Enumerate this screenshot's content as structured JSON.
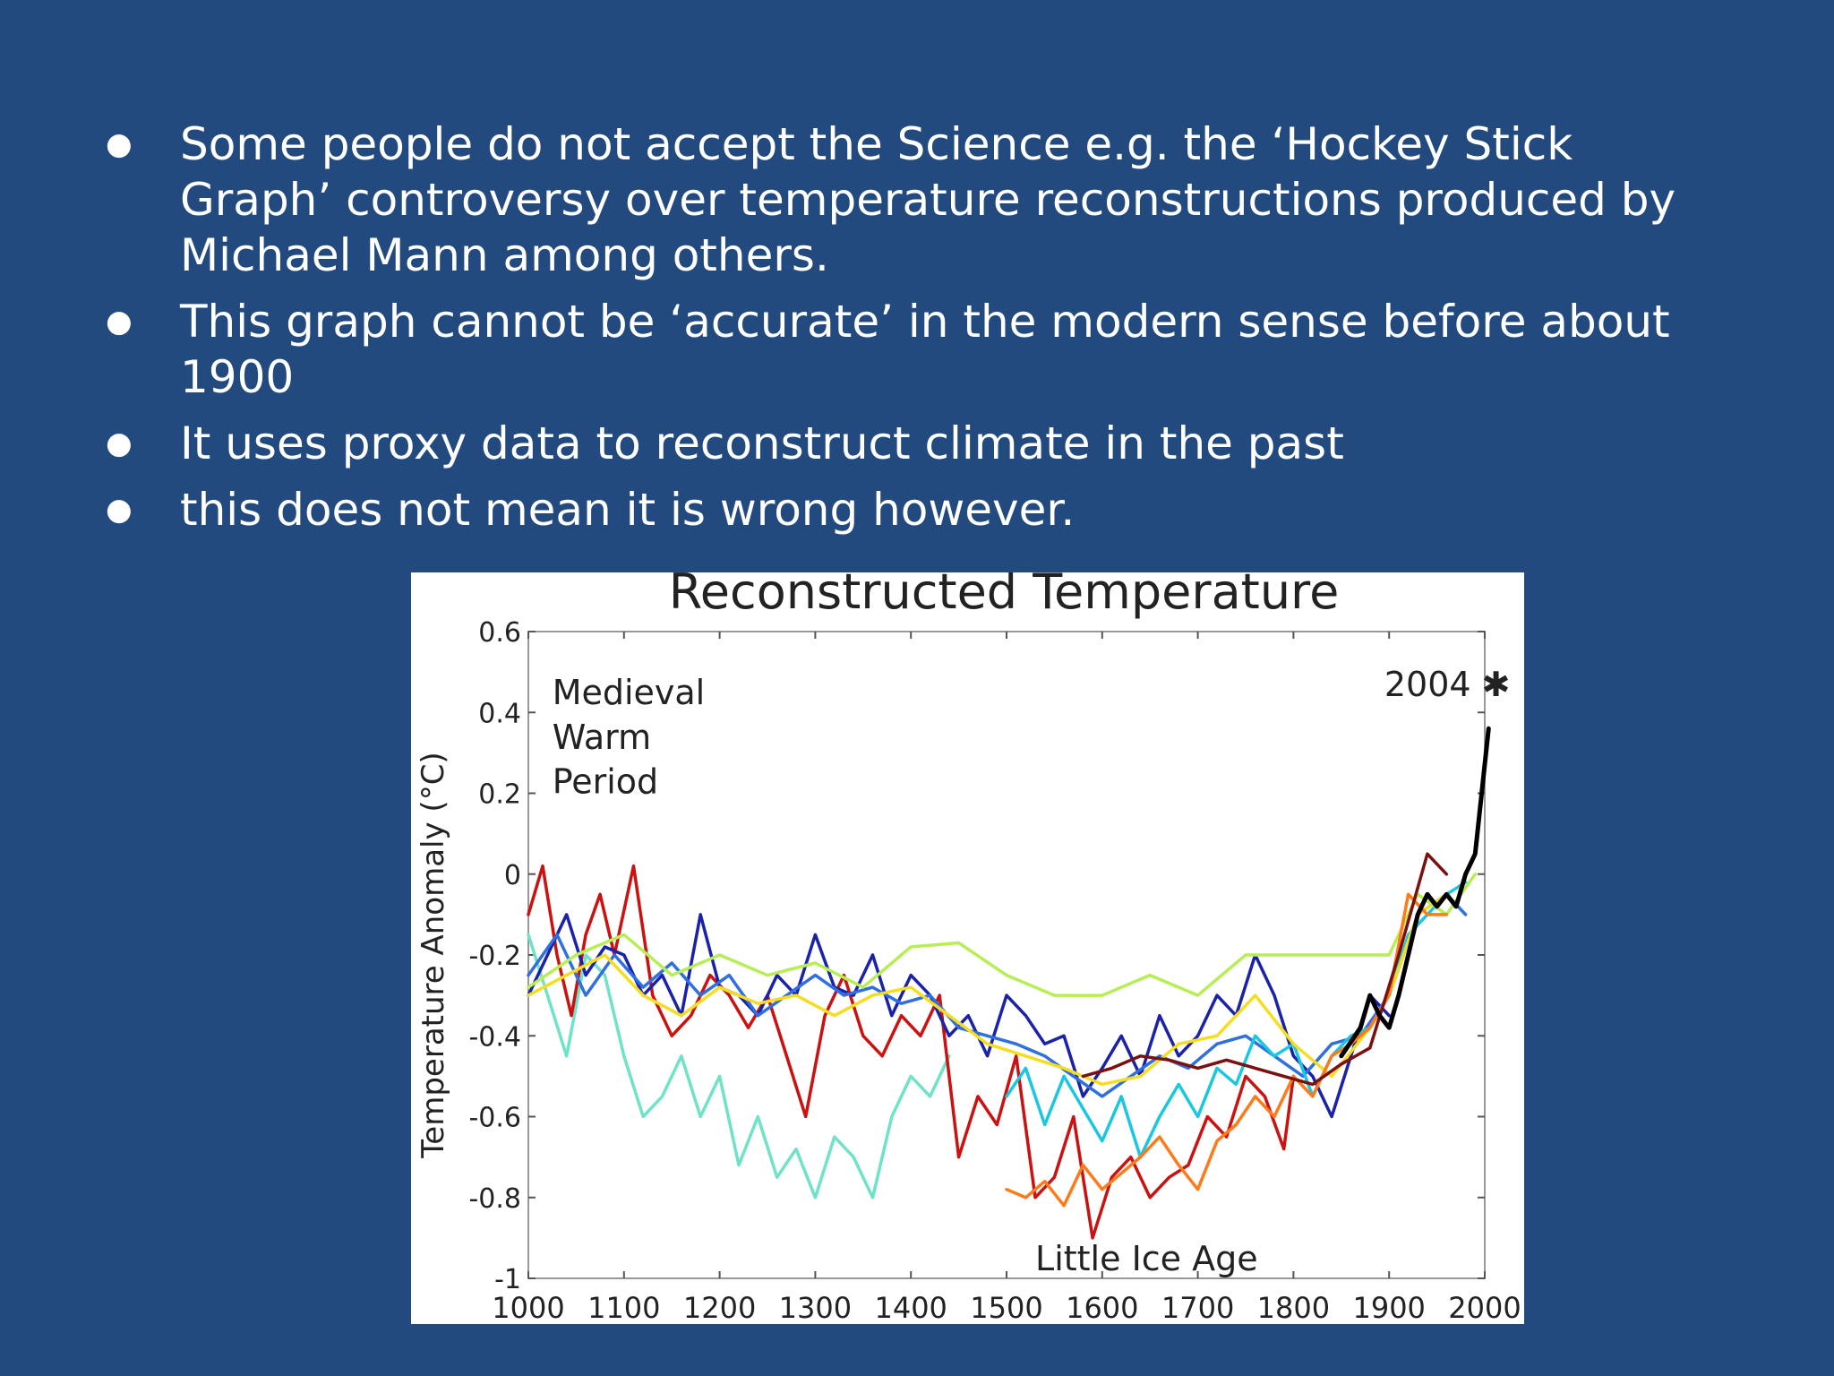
{
  "slide": {
    "bullets": [
      "Some people do not accept the Science e.g. the ‘Hockey Stick Graph’ controversy over temperature reconstructions produced by Michael Mann among others.",
      "This graph cannot be ‘accurate’ in the modern sense before about 1900",
      "It uses proxy data to reconstruct climate in the past",
      "this does not mean it is wrong however."
    ],
    "background": "#234a7e",
    "text_color": "#ffffff"
  },
  "chart_data": {
    "type": "line",
    "title": "Reconstructed Temperature",
    "xlabel": "",
    "ylabel": "Temperature Anomaly (°C)",
    "xlim": [
      1000,
      2000
    ],
    "ylim": [
      -1,
      0.6
    ],
    "x_ticks": [
      "1000",
      "1100",
      "1200",
      "1300",
      "1400",
      "1500",
      "1600",
      "1700",
      "1800",
      "1900",
      "2000"
    ],
    "y_ticks": [
      "0.6",
      "0.4",
      "0.2",
      "0",
      "-0.2",
      "-0.4",
      "-0.6",
      "-0.8",
      "-1"
    ],
    "grid": false,
    "annotations": [
      {
        "text": "Medieval",
        "x": 1025,
        "y": 0.42
      },
      {
        "text": "Warm",
        "x": 1025,
        "y": 0.31
      },
      {
        "text": "Period",
        "x": 1025,
        "y": 0.2
      },
      {
        "text": "Little Ice Age",
        "x": 1530,
        "y": -0.98
      },
      {
        "text": "2004 ✱",
        "x": 1895,
        "y": 0.44
      }
    ],
    "series": [
      {
        "color": "#6fe3c8",
        "x": [
          1000,
          1020,
          1040,
          1060,
          1080,
          1100,
          1120,
          1140,
          1160,
          1180,
          1200,
          1220,
          1240,
          1260,
          1280,
          1300,
          1320,
          1340,
          1360,
          1380,
          1400,
          1420,
          1440
        ],
        "values": [
          -0.15,
          -0.3,
          -0.45,
          -0.2,
          -0.25,
          -0.45,
          -0.6,
          -0.55,
          -0.45,
          -0.6,
          -0.5,
          -0.72,
          -0.6,
          -0.75,
          -0.68,
          -0.8,
          -0.65,
          -0.7,
          -0.8,
          -0.6,
          -0.5,
          -0.55,
          -0.45
        ]
      },
      {
        "color": "#cc1111",
        "x": [
          1000,
          1015,
          1030,
          1045,
          1060,
          1075,
          1090,
          1110,
          1130,
          1150,
          1170,
          1190,
          1210,
          1230,
          1250,
          1270,
          1290,
          1310,
          1330,
          1350,
          1370,
          1390,
          1410,
          1430,
          1450,
          1470,
          1490,
          1510,
          1530,
          1550,
          1570,
          1590,
          1610,
          1630,
          1650,
          1670,
          1690,
          1710,
          1730,
          1750,
          1770,
          1790,
          1800
        ],
        "values": [
          -0.1,
          0.02,
          -0.2,
          -0.35,
          -0.15,
          -0.05,
          -0.2,
          0.02,
          -0.3,
          -0.4,
          -0.35,
          -0.25,
          -0.3,
          -0.38,
          -0.3,
          -0.45,
          -0.6,
          -0.35,
          -0.25,
          -0.4,
          -0.45,
          -0.35,
          -0.4,
          -0.3,
          -0.7,
          -0.55,
          -0.62,
          -0.45,
          -0.8,
          -0.75,
          -0.6,
          -0.9,
          -0.75,
          -0.7,
          -0.8,
          -0.75,
          -0.72,
          -0.6,
          -0.65,
          -0.5,
          -0.55,
          -0.68,
          -0.5
        ]
      },
      {
        "color": "#1a22aa",
        "x": [
          1000,
          1020,
          1040,
          1060,
          1080,
          1100,
          1120,
          1140,
          1160,
          1180,
          1200,
          1220,
          1240,
          1260,
          1280,
          1300,
          1320,
          1340,
          1360,
          1380,
          1400,
          1420,
          1440,
          1460,
          1480,
          1500,
          1520,
          1540,
          1560,
          1580,
          1600,
          1620,
          1640,
          1660,
          1680,
          1700,
          1720,
          1740,
          1760,
          1780,
          1800,
          1820,
          1840,
          1860,
          1880,
          1900
        ],
        "values": [
          -0.3,
          -0.2,
          -0.1,
          -0.25,
          -0.18,
          -0.2,
          -0.3,
          -0.25,
          -0.35,
          -0.1,
          -0.28,
          -0.3,
          -0.35,
          -0.25,
          -0.3,
          -0.15,
          -0.28,
          -0.3,
          -0.2,
          -0.35,
          -0.25,
          -0.3,
          -0.4,
          -0.35,
          -0.45,
          -0.3,
          -0.35,
          -0.42,
          -0.4,
          -0.55,
          -0.48,
          -0.4,
          -0.5,
          -0.35,
          -0.45,
          -0.4,
          -0.3,
          -0.35,
          -0.2,
          -0.3,
          -0.45,
          -0.5,
          -0.6,
          -0.45,
          -0.3,
          -0.35
        ]
      },
      {
        "color": "#2f6fe0",
        "x": [
          1000,
          1030,
          1060,
          1090,
          1120,
          1150,
          1180,
          1210,
          1240,
          1270,
          1300,
          1330,
          1360,
          1390,
          1420,
          1450,
          1480,
          1510,
          1540,
          1570,
          1600,
          1630,
          1660,
          1690,
          1720,
          1750,
          1780,
          1810,
          1840,
          1870,
          1900,
          1930,
          1960,
          1980
        ],
        "values": [
          -0.25,
          -0.15,
          -0.3,
          -0.2,
          -0.28,
          -0.22,
          -0.3,
          -0.25,
          -0.35,
          -0.3,
          -0.25,
          -0.3,
          -0.28,
          -0.32,
          -0.3,
          -0.38,
          -0.4,
          -0.42,
          -0.45,
          -0.5,
          -0.55,
          -0.5,
          -0.45,
          -0.48,
          -0.42,
          -0.4,
          -0.45,
          -0.5,
          -0.42,
          -0.4,
          -0.3,
          -0.1,
          -0.05,
          -0.1
        ]
      },
      {
        "color": "#19c8e0",
        "x": [
          1500,
          1520,
          1540,
          1560,
          1580,
          1600,
          1620,
          1640,
          1660,
          1680,
          1700,
          1720,
          1740,
          1760,
          1780,
          1800,
          1820,
          1840,
          1860,
          1880,
          1900,
          1920,
          1940,
          1960,
          1980
        ],
        "values": [
          -0.55,
          -0.48,
          -0.62,
          -0.5,
          -0.58,
          -0.66,
          -0.55,
          -0.7,
          -0.6,
          -0.52,
          -0.6,
          -0.48,
          -0.52,
          -0.4,
          -0.45,
          -0.42,
          -0.55,
          -0.45,
          -0.4,
          -0.38,
          -0.3,
          -0.15,
          -0.1,
          -0.05,
          -0.02
        ]
      },
      {
        "color": "#f5dd22",
        "x": [
          1000,
          1040,
          1080,
          1120,
          1160,
          1200,
          1240,
          1280,
          1320,
          1360,
          1400,
          1440,
          1480,
          1520,
          1560,
          1600,
          1640,
          1680,
          1720,
          1760,
          1800,
          1840,
          1880,
          1900,
          1930,
          1960
        ],
        "values": [
          -0.3,
          -0.25,
          -0.2,
          -0.3,
          -0.35,
          -0.28,
          -0.32,
          -0.3,
          -0.35,
          -0.3,
          -0.28,
          -0.35,
          -0.42,
          -0.45,
          -0.48,
          -0.52,
          -0.5,
          -0.42,
          -0.4,
          -0.3,
          -0.42,
          -0.5,
          -0.38,
          -0.3,
          -0.1,
          -0.05
        ]
      },
      {
        "color": "#b8ee55",
        "x": [
          1000,
          1050,
          1100,
          1150,
          1200,
          1250,
          1300,
          1350,
          1400,
          1450,
          1500,
          1550,
          1600,
          1650,
          1700,
          1750,
          1800,
          1850,
          1900,
          1930,
          1960,
          1990
        ],
        "values": [
          -0.28,
          -0.2,
          -0.15,
          -0.25,
          -0.2,
          -0.25,
          -0.22,
          -0.28,
          -0.18,
          -0.17,
          -0.25,
          -0.3,
          -0.3,
          -0.25,
          -0.3,
          -0.2,
          -0.2,
          -0.2,
          -0.2,
          -0.05,
          -0.1,
          0.0
        ]
      },
      {
        "color": "#ff7a1a",
        "x": [
          1500,
          1520,
          1540,
          1560,
          1580,
          1600,
          1620,
          1640,
          1660,
          1680,
          1700,
          1720,
          1740,
          1760,
          1780,
          1800,
          1820,
          1840,
          1860,
          1880,
          1900,
          1920,
          1940,
          1960
        ],
        "values": [
          -0.78,
          -0.8,
          -0.76,
          -0.82,
          -0.72,
          -0.78,
          -0.74,
          -0.7,
          -0.65,
          -0.72,
          -0.78,
          -0.66,
          -0.62,
          -0.55,
          -0.6,
          -0.5,
          -0.55,
          -0.45,
          -0.42,
          -0.38,
          -0.3,
          -0.05,
          -0.1,
          -0.1
        ]
      },
      {
        "color": "#7a1010",
        "x": [
          1580,
          1610,
          1640,
          1670,
          1700,
          1730,
          1760,
          1790,
          1820,
          1850,
          1880,
          1910,
          1940,
          1960
        ],
        "values": [
          -0.5,
          -0.48,
          -0.45,
          -0.46,
          -0.48,
          -0.46,
          -0.48,
          -0.5,
          -0.52,
          -0.47,
          -0.43,
          -0.2,
          0.05,
          0.0
        ]
      },
      {
        "color": "#000000",
        "x": [
          1850,
          1870,
          1880,
          1890,
          1900,
          1910,
          1920,
          1930,
          1940,
          1950,
          1960,
          1970,
          1980,
          1990,
          2004
        ],
        "values": [
          -0.45,
          -0.38,
          -0.3,
          -0.35,
          -0.38,
          -0.3,
          -0.2,
          -0.1,
          -0.05,
          -0.08,
          -0.05,
          -0.08,
          0.0,
          0.05,
          0.36
        ]
      }
    ]
  }
}
